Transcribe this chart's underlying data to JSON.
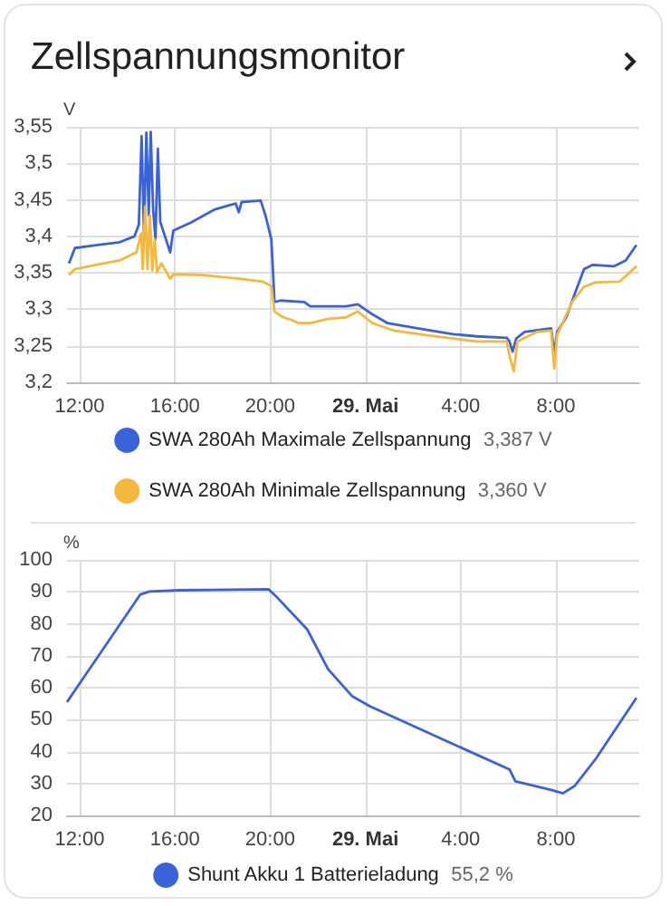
{
  "chart_data": [
    {
      "type": "line",
      "title": "Zellspannungsmonitor",
      "ylabel": "V",
      "xlim": [
        "--05-28T11:28",
        "--05-29T11:30"
      ],
      "xticks": [
        {
          "value": "--05-28T12:00",
          "label": "12:00"
        },
        {
          "value": "--05-28T16:00",
          "label": "16:00"
        },
        {
          "value": "--05-28T20:00",
          "label": "20:00"
        },
        {
          "value": "--05-29T00:00",
          "label": "29. Mai"
        },
        {
          "value": "--05-29T04:00",
          "label": "4:00"
        },
        {
          "value": "--05-29T08:00",
          "label": "8:00"
        }
      ],
      "ylim": [
        3.2,
        3.55
      ],
      "yticks": [
        {
          "value": 3.2,
          "label": "3,2"
        },
        {
          "value": 3.25,
          "label": "3,25"
        },
        {
          "value": 3.3,
          "label": "3,3"
        },
        {
          "value": 3.35,
          "label": "3,35"
        },
        {
          "value": 3.4,
          "label": "3,4"
        },
        {
          "value": 3.45,
          "label": "3,45"
        },
        {
          "value": 3.5,
          "label": "3,5"
        },
        {
          "value": 3.55,
          "label": "3,55"
        }
      ],
      "grid": true,
      "legend": "bottom",
      "marker": "none",
      "line_style": "solid",
      "annotations": [
        "3,387 V",
        "3,360 V"
      ],
      "series": [
        {
          "name": "SWA 280Ah Maximale Zellspannung",
          "color": "#3b63d9",
          "x": [
            "--05-28T11:33",
            "--05-28T11:48",
            "--05-28T12:41",
            "--05-28T13:41",
            "--05-28T14:18",
            "--05-28T14:29",
            "--05-28T14:36",
            "--05-28T14:42",
            "--05-28T14:48",
            "--05-28T14:54",
            "--05-28T14:59",
            "--05-28T15:05",
            "--05-28T15:11",
            "--05-28T15:17",
            "--05-28T15:23",
            "--05-28T15:48",
            "--05-28T15:56",
            "--05-28T16:41",
            "--05-28T17:41",
            "--05-28T18:33",
            "--05-28T18:41",
            "--05-28T18:48",
            "--05-28T19:36",
            "--05-28T19:48",
            "--05-28T20:03",
            "--05-28T20:11",
            "--05-28T20:26",
            "--05-28T21:26",
            "--05-28T21:41",
            "--05-28T23:11",
            "--05-28T23:41",
            "--05-29T00:18",
            "--05-29T00:56",
            "--05-29T02:11",
            "--05-29T03:41",
            "--05-29T04:41",
            "--05-29T05:56",
            "--05-29T06:03",
            "--05-29T06:11",
            "--05-29T06:20",
            "--05-29T06:41",
            "--05-29T07:48",
            "--05-29T07:56",
            "--05-29T08:03",
            "--05-29T08:26",
            "--05-29T08:48",
            "--05-29T09:11",
            "--05-29T09:33",
            "--05-29T10:26",
            "--05-29T10:56",
            "--05-29T11:23"
          ],
          "values": [
            3.363,
            3.384,
            3.388,
            3.392,
            3.4,
            3.416,
            3.537,
            3.404,
            3.542,
            3.429,
            3.543,
            3.437,
            3.396,
            3.52,
            3.42,
            3.378,
            3.408,
            3.419,
            3.437,
            3.445,
            3.433,
            3.447,
            3.449,
            3.429,
            3.396,
            3.31,
            3.312,
            3.31,
            3.304,
            3.304,
            3.307,
            3.293,
            3.281,
            3.274,
            3.266,
            3.263,
            3.261,
            3.256,
            3.242,
            3.26,
            3.269,
            3.274,
            3.24,
            3.269,
            3.289,
            3.322,
            3.355,
            3.361,
            3.359,
            3.367,
            3.388
          ]
        },
        {
          "name": "SWA 280Ah Minimale Zellspannung",
          "color": "#f5b83d",
          "x": [
            "--05-28T11:33",
            "--05-28T11:48",
            "--05-28T12:41",
            "--05-28T13:41",
            "--05-28T14:23",
            "--05-28T14:35",
            "--05-28T14:39",
            "--05-28T14:45",
            "--05-28T14:51",
            "--05-28T14:57",
            "--05-28T15:03",
            "--05-28T15:09",
            "--05-28T15:15",
            "--05-28T15:26",
            "--05-28T15:48",
            "--05-28T15:56",
            "--05-28T17:11",
            "--05-28T18:41",
            "--05-28T19:41",
            "--05-28T20:03",
            "--05-28T20:11",
            "--05-28T20:33",
            "--05-28T20:56",
            "--05-28T21:11",
            "--05-28T21:41",
            "--05-28T22:26",
            "--05-28T23:11",
            "--05-28T23:41",
            "--05-29T00:18",
            "--05-29T01:11",
            "--05-29T02:41",
            "--05-29T04:41",
            "--05-29T05:56",
            "--05-29T06:05",
            "--05-29T06:14",
            "--05-29T06:23",
            "--05-29T07:11",
            "--05-29T07:48",
            "--05-29T07:56",
            "--05-29T08:03",
            "--05-29T08:41",
            "--05-29T09:11",
            "--05-29T09:41",
            "--05-29T10:41",
            "--05-29T11:23"
          ],
          "values": [
            3.347,
            3.355,
            3.361,
            3.367,
            3.378,
            3.404,
            3.355,
            3.441,
            3.355,
            3.429,
            3.353,
            3.396,
            3.351,
            3.363,
            3.342,
            3.348,
            3.347,
            3.342,
            3.338,
            3.332,
            3.297,
            3.289,
            3.285,
            3.281,
            3.281,
            3.287,
            3.289,
            3.297,
            3.281,
            3.271,
            3.264,
            3.256,
            3.256,
            3.232,
            3.215,
            3.256,
            3.269,
            3.271,
            3.219,
            3.265,
            3.31,
            3.331,
            3.337,
            3.338,
            3.359
          ]
        }
      ]
    },
    {
      "type": "line",
      "ylabel": "%",
      "xlim": [
        "--05-28T11:28",
        "--05-29T11:30"
      ],
      "xticks": [
        {
          "value": "--05-28T12:00",
          "label": "12:00"
        },
        {
          "value": "--05-28T16:00",
          "label": "16:00"
        },
        {
          "value": "--05-28T20:00",
          "label": "20:00"
        },
        {
          "value": "--05-29T00:00",
          "label": "29. Mai"
        },
        {
          "value": "--05-29T04:00",
          "label": "4:00"
        },
        {
          "value": "--05-29T08:00",
          "label": "8:00"
        }
      ],
      "ylim": [
        20,
        100
      ],
      "yticks": [
        20,
        30,
        40,
        50,
        60,
        70,
        80,
        90,
        100
      ],
      "grid": true,
      "legend": "bottom",
      "marker": "none",
      "line_style": "solid",
      "annotations": [
        "55,2 %"
      ],
      "series": [
        {
          "name": "Shunt Akku 1 Batterieladung",
          "color": "#3b63d9",
          "x": [
            "--05-28T11:28",
            "--05-28T14:33",
            "--05-28T14:56",
            "--05-28T16:11",
            "--05-28T19:56",
            "--05-28T20:18",
            "--05-28T21:33",
            "--05-28T22:26",
            "--05-28T23:26",
            "--05-29T00:11",
            "--05-29T03:56",
            "--05-29T06:03",
            "--05-29T06:18",
            "--05-29T07:48",
            "--05-29T08:18",
            "--05-29T08:48",
            "--05-29T09:41",
            "--05-29T11:23"
          ],
          "values": [
            55.5,
            89.2,
            90.1,
            90.5,
            90.8,
            88.2,
            78.3,
            65.8,
            57.4,
            54.2,
            41.5,
            34.4,
            30.7,
            28.0,
            26.9,
            29.3,
            37.8,
            56.8
          ]
        }
      ]
    }
  ]
}
